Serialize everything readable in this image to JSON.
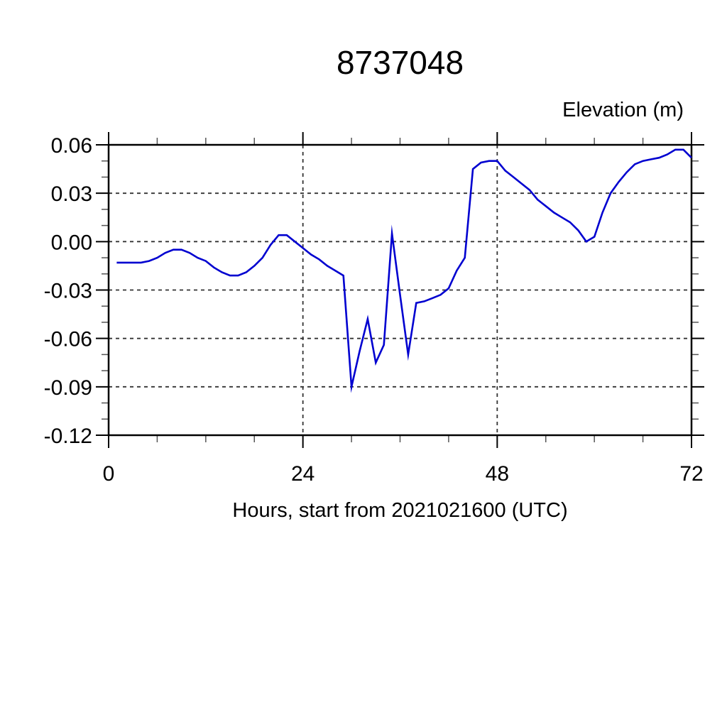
{
  "chart_data": {
    "type": "line",
    "title": "8737048",
    "xlabel": "Hours, start from 2021021600 (UTC)",
    "ylabel": "Elevation (m)",
    "xlim": [
      0,
      72
    ],
    "ylim": [
      -0.12,
      0.06
    ],
    "x_major_ticks": [
      0,
      24,
      48,
      72
    ],
    "x_tick_labels": [
      "0",
      "24",
      "48",
      "72"
    ],
    "x_minor_step": 6,
    "y_major_ticks": [
      0.06,
      0.03,
      0,
      -0.03,
      -0.06,
      -0.09,
      -0.12
    ],
    "y_tick_labels": [
      "0.06",
      "0.03",
      "0.00",
      "-0.03",
      "-0.06",
      "-0.09",
      "-0.12"
    ],
    "y_minor_step": 0.01,
    "grid": {
      "style": "dashed",
      "x_gridlines": [
        24,
        48
      ],
      "y_gridlines": [
        0.06,
        0.03,
        0,
        -0.03,
        -0.06,
        -0.09
      ]
    },
    "frame_color": "#000000",
    "gridline_color": "#333333",
    "series": [
      {
        "name": "elevation",
        "color": "#0000d0",
        "points": [
          [
            1,
            -0.013
          ],
          [
            2,
            -0.013
          ],
          [
            3,
            -0.013
          ],
          [
            4,
            -0.013
          ],
          [
            5,
            -0.012
          ],
          [
            6,
            -0.01
          ],
          [
            7,
            -0.007
          ],
          [
            8,
            -0.005
          ],
          [
            9,
            -0.005
          ],
          [
            10,
            -0.007
          ],
          [
            11,
            -0.01
          ],
          [
            12,
            -0.012
          ],
          [
            13,
            -0.016
          ],
          [
            14,
            -0.019
          ],
          [
            15,
            -0.021
          ],
          [
            16,
            -0.021
          ],
          [
            17,
            -0.019
          ],
          [
            18,
            -0.015
          ],
          [
            19,
            -0.01
          ],
          [
            20,
            -0.002
          ],
          [
            21,
            0.004
          ],
          [
            22,
            0.004
          ],
          [
            23,
            0
          ],
          [
            24,
            -0.004
          ],
          [
            25,
            -0.008
          ],
          [
            26,
            -0.011
          ],
          [
            27,
            -0.015
          ],
          [
            28,
            -0.018
          ],
          [
            29,
            -0.021
          ],
          [
            30,
            -0.09
          ],
          [
            31,
            -0.068
          ],
          [
            32,
            -0.048
          ],
          [
            33,
            -0.075
          ],
          [
            34,
            -0.064
          ],
          [
            35,
            0.005
          ],
          [
            36,
            -0.033
          ],
          [
            37,
            -0.07
          ],
          [
            38,
            -0.038
          ],
          [
            39,
            -0.037
          ],
          [
            40,
            -0.035
          ],
          [
            41,
            -0.033
          ],
          [
            42,
            -0.029
          ],
          [
            43,
            -0.018
          ],
          [
            44,
            -0.01
          ],
          [
            45,
            0.045
          ],
          [
            46,
            0.049
          ],
          [
            47,
            0.05
          ],
          [
            48,
            0.05
          ],
          [
            49,
            0.044
          ],
          [
            50,
            0.04
          ],
          [
            51,
            0.036
          ],
          [
            52,
            0.032
          ],
          [
            53,
            0.026
          ],
          [
            54,
            0.022
          ],
          [
            55,
            0.018
          ],
          [
            56,
            0.015
          ],
          [
            57,
            0.012
          ],
          [
            58,
            0.007
          ],
          [
            59,
            0
          ],
          [
            60,
            0.003
          ],
          [
            61,
            0.018
          ],
          [
            62,
            0.03
          ],
          [
            63,
            0.037
          ],
          [
            64,
            0.043
          ],
          [
            65,
            0.048
          ],
          [
            66,
            0.05
          ],
          [
            67,
            0.051
          ],
          [
            68,
            0.052
          ],
          [
            69,
            0.054
          ],
          [
            70,
            0.057
          ],
          [
            71,
            0.057
          ],
          [
            72,
            0.052
          ]
        ]
      }
    ]
  }
}
